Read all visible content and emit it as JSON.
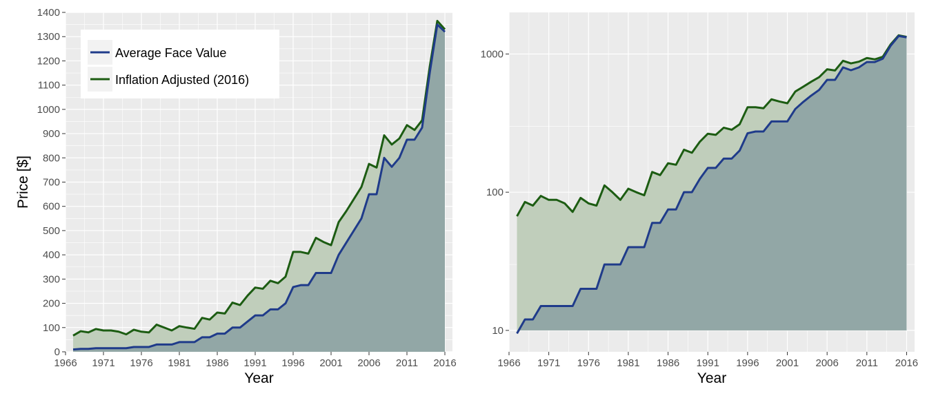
{
  "chart_data": [
    {
      "type": "area",
      "xlabel": "Year",
      "ylabel": "Price [$]",
      "ylim": [
        0,
        1400
      ],
      "xlim": [
        1966,
        2017
      ],
      "x_ticks": [
        1966,
        1971,
        1976,
        1981,
        1986,
        1991,
        1996,
        2001,
        2006,
        2011,
        2016
      ],
      "y_ticks": [
        0,
        100,
        200,
        300,
        400,
        500,
        600,
        700,
        800,
        900,
        1000,
        1100,
        1200,
        1300,
        1400
      ],
      "grid": true,
      "legend_position": "top-left",
      "legend": [
        "Average Face Value",
        "Inflation Adjusted (2016)"
      ]
    },
    {
      "type": "area",
      "xlabel": "Year",
      "ylabel": "",
      "scale": "log10",
      "ylim": [
        7,
        2000
      ],
      "xlim": [
        1966,
        2017
      ],
      "x_ticks": [
        1966,
        1971,
        1976,
        1981,
        1986,
        1991,
        1996,
        2001,
        2006,
        2011,
        2016
      ],
      "y_ticks": [
        10,
        100,
        1000
      ],
      "grid": true,
      "legend_position": "none"
    }
  ],
  "series": {
    "x": [
      1967,
      1968,
      1969,
      1970,
      1971,
      1972,
      1973,
      1974,
      1975,
      1976,
      1977,
      1978,
      1979,
      1980,
      1981,
      1982,
      1983,
      1984,
      1985,
      1986,
      1987,
      1988,
      1989,
      1990,
      1991,
      1992,
      1993,
      1994,
      1995,
      1996,
      1997,
      1998,
      1999,
      2000,
      2001,
      2002,
      2003,
      2004,
      2005,
      2006,
      2007,
      2008,
      2009,
      2010,
      2011,
      2012,
      2013,
      2014,
      2015,
      2016
    ],
    "face": [
      9.5,
      12,
      12,
      15,
      15,
      15,
      15,
      15,
      20,
      20,
      20,
      30,
      30,
      30,
      40,
      40,
      40,
      60,
      60,
      75,
      75,
      100,
      100,
      125,
      150,
      150,
      175,
      175,
      200,
      267,
      275,
      275,
      325,
      325,
      325,
      400,
      450,
      500,
      550,
      650,
      650,
      800,
      763,
      800,
      875,
      875,
      925,
      1150,
      1350,
      1320
    ],
    "inflation": [
      67,
      85,
      80,
      94,
      88,
      88,
      83,
      72,
      91,
      83,
      80,
      112,
      100,
      88,
      106,
      100,
      95,
      140,
      133,
      162,
      158,
      203,
      193,
      232,
      265,
      260,
      293,
      283,
      310,
      412,
      412,
      405,
      470,
      453,
      440,
      535,
      580,
      630,
      680,
      775,
      760,
      893,
      855,
      880,
      935,
      915,
      955,
      1175,
      1365,
      1330
    ],
    "colors": {
      "face_line": "#1f3b8a",
      "inflation_line": "#1c5c12",
      "face_fill": "#92a7a6",
      "inflation_fill": "#c0cebb",
      "panel_bg": "#ebebeb",
      "grid": "#ffffff"
    },
    "names": [
      "Average Face Value",
      "Inflation Adjusted (2016)"
    ]
  }
}
